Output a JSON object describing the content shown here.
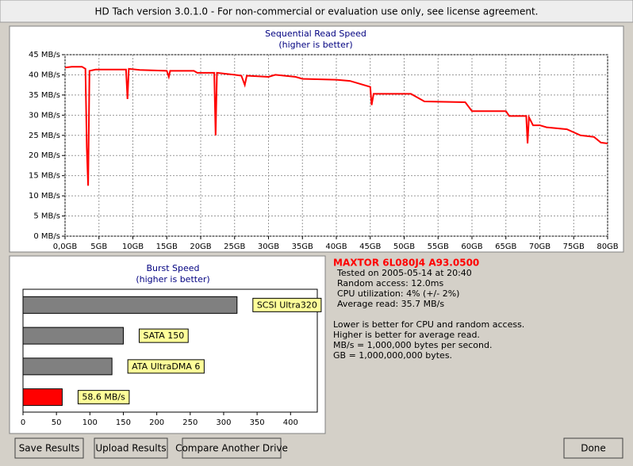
{
  "window_title": "HD Tach version 3.0.1.0  - For non-commercial or evaluation use only, see license agreement.",
  "chart_data": [
    {
      "type": "line",
      "title": "Sequential Read Speed",
      "subtitle": "(higher is better)",
      "color": "#ff0000",
      "grid": true,
      "x": [
        0,
        1,
        2.5,
        3,
        3.2,
        3.4,
        3.6,
        4.5,
        9,
        9.2,
        9.4,
        11,
        15,
        15.3,
        15.5,
        19,
        19.5,
        22,
        22.2,
        22.4,
        25,
        26,
        26.5,
        26.8,
        30,
        31,
        34,
        35,
        40,
        42,
        45,
        45.2,
        45.5,
        51,
        53,
        59,
        60,
        65,
        65.5,
        68,
        68.2,
        68.4,
        69,
        70,
        71,
        74,
        76,
        78,
        79,
        80
      ],
      "values": [
        41.8,
        42,
        42,
        41.5,
        22,
        12.5,
        41,
        41.3,
        41.3,
        34,
        41.5,
        41.2,
        41,
        39.5,
        41,
        41,
        40.5,
        40.5,
        25,
        40.5,
        40,
        39.8,
        37.5,
        39.8,
        39.5,
        40,
        39.5,
        39,
        38.8,
        38.5,
        37,
        32.5,
        35.3,
        35.3,
        33.4,
        33.2,
        31,
        31,
        29.8,
        29.8,
        23,
        29.5,
        27.5,
        27.5,
        27,
        26.5,
        25,
        24.6,
        23.2,
        23
      ],
      "xlim": [
        0,
        80
      ],
      "ylim": [
        0,
        45
      ],
      "xticks": [
        {
          "value": 0,
          "label": "0,0GB"
        },
        {
          "value": 5,
          "label": "5GB"
        },
        {
          "value": 10,
          "label": "10GB"
        },
        {
          "value": 15,
          "label": "15GB"
        },
        {
          "value": 20,
          "label": "20GB"
        },
        {
          "value": 25,
          "label": "25GB"
        },
        {
          "value": 30,
          "label": "30GB"
        },
        {
          "value": 35,
          "label": "35GB"
        },
        {
          "value": 40,
          "label": "40GB"
        },
        {
          "value": 45,
          "label": "45GB"
        },
        {
          "value": 50,
          "label": "50GB"
        },
        {
          "value": 55,
          "label": "55GB"
        },
        {
          "value": 60,
          "label": "60GB"
        },
        {
          "value": 65,
          "label": "65GB"
        },
        {
          "value": 70,
          "label": "70GB"
        },
        {
          "value": 75,
          "label": "75GB"
        },
        {
          "value": 80,
          "label": "80GB"
        }
      ],
      "yticks": [
        {
          "value": 0,
          "label": "0 MB/s"
        },
        {
          "value": 5,
          "label": "5 MB/s"
        },
        {
          "value": 10,
          "label": "10 MB/s"
        },
        {
          "value": 15,
          "label": "15 MB/s"
        },
        {
          "value": 20,
          "label": "20 MB/s"
        },
        {
          "value": 25,
          "label": "25 MB/s"
        },
        {
          "value": 30,
          "label": "30 MB/s"
        },
        {
          "value": 35,
          "label": "35 MB/s"
        },
        {
          "value": 40,
          "label": "40 MB/s"
        },
        {
          "value": 45,
          "label": "45 MB/s"
        }
      ]
    },
    {
      "type": "bar",
      "orientation": "horizontal",
      "title": "Burst Speed",
      "subtitle": "(higher is better)",
      "categories": [
        "SCSI Ultra320",
        "SATA 150",
        "ATA UltraDMA 6",
        null
      ],
      "values": [
        320,
        150,
        133,
        58.6
      ],
      "value_labels": [
        null,
        null,
        null,
        "58.6 MB/s"
      ],
      "colors": [
        "#808080",
        "#808080",
        "#808080",
        "#ff0000"
      ],
      "xlim": [
        0,
        440
      ],
      "xticks": [
        0,
        50,
        100,
        150,
        200,
        250,
        300,
        350,
        400
      ]
    }
  ],
  "drive": {
    "name": "MAXTOR 6L080J4 A93.0500",
    "details": [
      "Tested on 2005-05-14 at 20:40",
      "Random access: 12.0ms",
      "CPU utilization: 4% (+/- 2%)",
      "Average read: 35.7 MB/s"
    ],
    "notes": [
      "Lower is better for CPU and random access.",
      "Higher is better for average read.",
      "MB/s = 1,000,000 bytes per second.",
      "GB = 1,000,000,000 bytes."
    ]
  },
  "buttons": [
    "Save Results",
    "Upload Results",
    "Compare Another Drive",
    "Done"
  ]
}
